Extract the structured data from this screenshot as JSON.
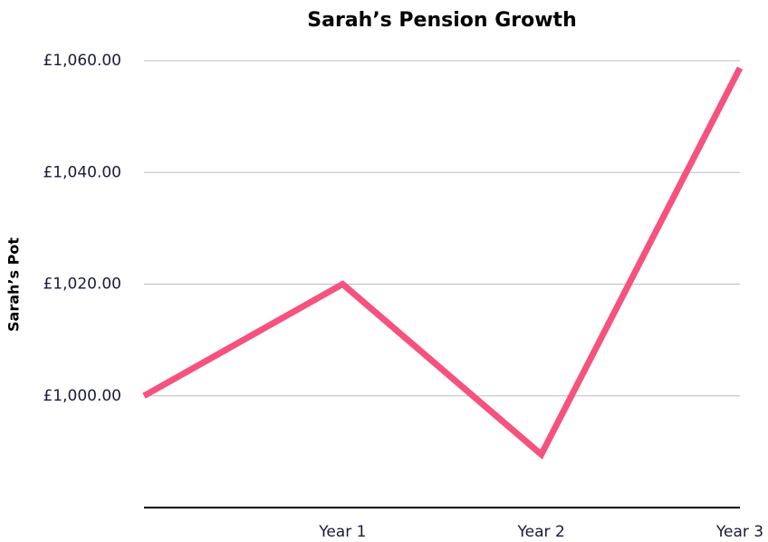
{
  "chart_data": {
    "type": "line",
    "title": "Sarah’s Pension Growth",
    "y_label": "Sarah’s Pot",
    "categories": [
      null,
      "Year 1",
      "Year 2",
      "Year 3"
    ],
    "series": [
      {
        "name": "Sarah’s Pot",
        "color": "#f5527f",
        "values": [
          1000,
          1020,
          989.5,
          1058.7
        ]
      }
    ],
    "ylim": [
      980,
      1060
    ],
    "yticks": [
      {
        "value": 1000,
        "label": "£1,000.00"
      },
      {
        "value": 1020,
        "label": "£1,020.00"
      },
      {
        "value": 1040,
        "label": "£1,040.00"
      },
      {
        "value": 1060,
        "label": "£1,060.00"
      }
    ],
    "grid": true
  }
}
